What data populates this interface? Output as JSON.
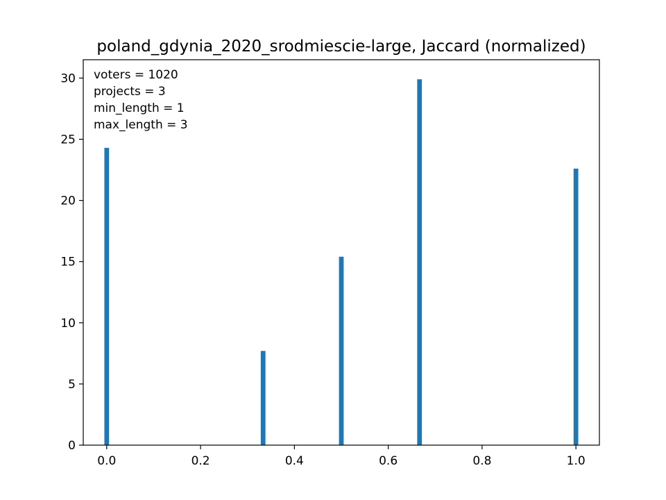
{
  "chart_data": {
    "type": "bar",
    "title": "poland_gdynia_2020_srodmiescie-large, Jaccard (normalized)",
    "xlabel": "",
    "ylabel": "",
    "x": [
      0.0,
      0.3333,
      0.5,
      0.6667,
      1.0
    ],
    "values": [
      24.3,
      7.7,
      15.4,
      29.9,
      22.6
    ],
    "bar_width": 0.01,
    "xlim": [
      -0.05,
      1.05
    ],
    "ylim": [
      0,
      31.5
    ],
    "xticks": [
      0.0,
      0.2,
      0.4,
      0.6,
      0.8,
      1.0
    ],
    "xtick_labels": [
      "0.0",
      "0.2",
      "0.4",
      "0.6",
      "0.8",
      "1.0"
    ],
    "yticks": [
      0,
      5,
      10,
      15,
      20,
      25,
      30
    ],
    "ytick_labels": [
      "0",
      "5",
      "10",
      "15",
      "20",
      "25",
      "30"
    ],
    "annotations": [
      "voters = 1020",
      "projects = 3",
      "min_length = 1",
      "max_length = 3"
    ],
    "annotation_position": "top-left",
    "grid": false,
    "bar_color": "#1f77b4"
  }
}
